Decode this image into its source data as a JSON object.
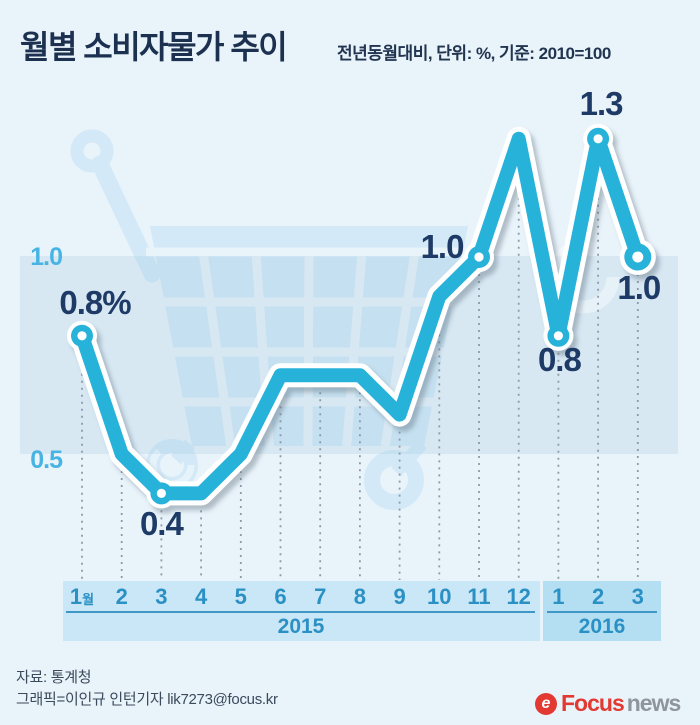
{
  "header": {
    "title": "월별 소비자물가 추이",
    "subtitle": "전년동월대비, 단위: %, 기준: 2010=100"
  },
  "y_axis": {
    "labels": [
      "1.0",
      "0.5"
    ]
  },
  "chart_data": {
    "type": "line",
    "categories": [
      "2015-1",
      "2015-2",
      "2015-3",
      "2015-4",
      "2015-5",
      "2015-6",
      "2015-7",
      "2015-8",
      "2015-9",
      "2015-10",
      "2015-11",
      "2015-12",
      "2016-1",
      "2016-2",
      "2016-3"
    ],
    "values": [
      0.8,
      0.5,
      0.4,
      0.4,
      0.5,
      0.7,
      0.7,
      0.7,
      0.6,
      0.9,
      1.0,
      1.3,
      0.8,
      1.3,
      1.0
    ],
    "title": "월별 소비자물가 추이",
    "xlabel": "",
    "ylabel": "%",
    "ylim": [
      0.3,
      1.4
    ],
    "gridlines_y": [
      0.5,
      1.0
    ],
    "highlight_band": [
      0.5,
      1.0
    ],
    "legend": "none",
    "annotations": [
      {
        "index": 0,
        "text": "0.8%"
      },
      {
        "index": 2,
        "text": "0.4"
      },
      {
        "index": 10,
        "text": "1.0"
      },
      {
        "index": 12,
        "text": "0.8"
      },
      {
        "index": 13,
        "text": "1.3"
      },
      {
        "index": 14,
        "text": "1.0"
      }
    ],
    "markers": {
      "small": [
        0,
        2,
        10,
        12,
        13
      ],
      "large": [
        14
      ]
    },
    "x_axis": {
      "groups": [
        {
          "year": "2015",
          "months": [
            "1월",
            "2",
            "3",
            "4",
            "5",
            "6",
            "7",
            "8",
            "9",
            "10",
            "11",
            "12"
          ]
        },
        {
          "year": "2016",
          "months": [
            "1",
            "2",
            "3"
          ]
        }
      ]
    }
  },
  "footer": {
    "source": "자료: 통계청",
    "credit": "그래픽=이인규 인턴기자 lik7273@focus.kr",
    "logo": {
      "icon": "e",
      "brand": "Focus",
      "suffix": "news"
    }
  },
  "colors": {
    "background": "#e9f3fa",
    "band": "rgba(140,185,215,0.19)",
    "line": "#27b2da",
    "label_navy": "#1e3a66",
    "axis_cyan": "#47b4e4",
    "month_blue": "#2b90c4",
    "strip_2015": "#c9e7f6",
    "strip_2016": "#b4dff3",
    "underline": "#3f97c6",
    "watermark": "#d3e9f7",
    "dotted": "#8d9aa8",
    "logo_red": "#e23a32",
    "logo_gray": "#8e959c"
  }
}
